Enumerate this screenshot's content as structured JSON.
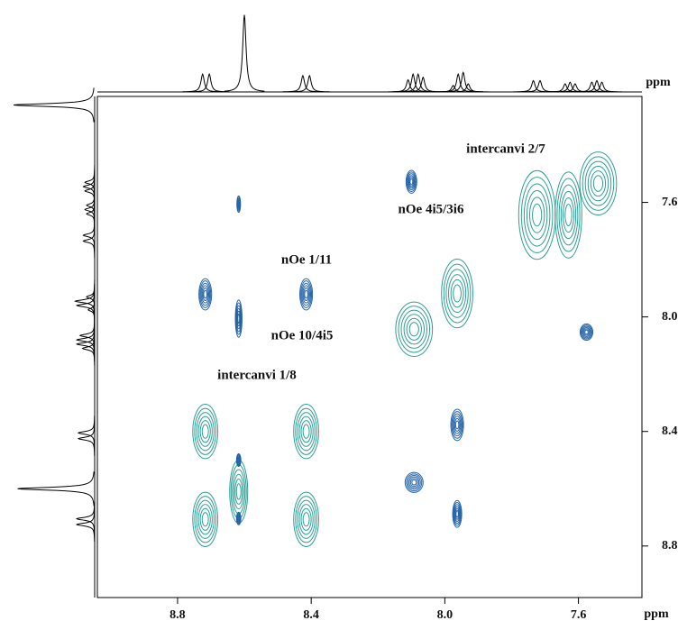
{
  "chart_data": {
    "type": "nmr2d",
    "xlabel": "ppm",
    "ylabel": "ppm",
    "xlim": [
      9.04,
      7.41
    ],
    "ylim": [
      7.23,
      8.98
    ],
    "xticks": [
      8.8,
      8.4,
      {
        "value": 8,
        "label": "8.0"
      },
      7.6
    ],
    "yticks": [
      7.6,
      {
        "value": 8,
        "label": "8.0"
      },
      8.4,
      8.8
    ],
    "series": [
      {
        "color": "#2f9f95",
        "x": [
          8.717,
          8.717,
          8.415,
          8.415,
          8.617,
          8.092,
          7.963,
          7.724,
          7.63,
          7.541
        ],
        "y": [
          8.4,
          8.707,
          8.4,
          8.707,
          8.61,
          8.043,
          7.918,
          7.644,
          7.644,
          7.534
        ],
        "widths": [
          0.075,
          0.075,
          0.075,
          0.075,
          0.054,
          0.11,
          0.094,
          0.11,
          0.08,
          0.11
        ],
        "heights": [
          0.19,
          0.19,
          0.19,
          0.19,
          0.22,
          0.19,
          0.24,
          0.31,
          0.3,
          0.22
        ]
      },
      {
        "color": "#2563a8",
        "x": [
          8.717,
          8.415,
          8.617,
          8.617,
          8.1,
          8.092,
          7.963,
          7.963,
          7.576,
          8.617,
          8.617
        ],
        "y": [
          7.921,
          7.921,
          8.006,
          7.606,
          7.528,
          8.578,
          8.377,
          8.688,
          8.053,
          8.5,
          8.704
        ],
        "widths": [
          0.038,
          0.038,
          0.02,
          0.011,
          0.032,
          0.054,
          0.038,
          0.027,
          0.038,
          0.013,
          0.013
        ],
        "heights": [
          0.11,
          0.11,
          0.13,
          0.057,
          0.08,
          0.07,
          0.11,
          0.094,
          0.057,
          0.044,
          0.044
        ]
      }
    ],
    "projection": {
      "shifts": [
        8.725,
        8.705,
        8.6,
        8.425,
        8.405,
        8.11,
        8.095,
        8.08,
        8.065,
        7.975,
        7.96,
        7.945,
        7.93,
        7.735,
        7.715,
        7.64,
        7.625,
        7.61,
        7.56,
        7.545,
        7.53,
        7.26
      ],
      "intensities": [
        22,
        22,
        95,
        20,
        20,
        15,
        22,
        22,
        18,
        8,
        22,
        24,
        10,
        14,
        14,
        10,
        12,
        10,
        12,
        14,
        12,
        100
      ]
    },
    "annotations": [
      "intercanvi 2/7",
      "nOe 4i5/3i6",
      "nOe 1/11",
      "nOe 10/4i5",
      "intercanvi 1/8"
    ]
  }
}
